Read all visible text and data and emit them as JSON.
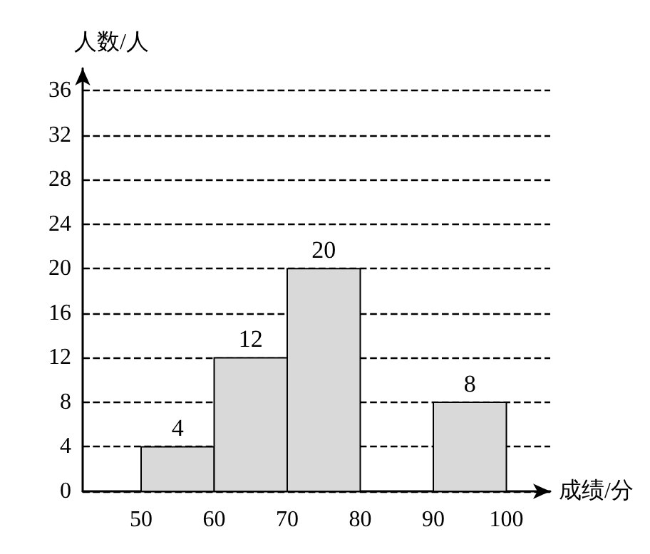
{
  "chart_data": {
    "type": "histogram",
    "xlabel": "成绩/分",
    "ylabel": "人数/人",
    "bins": [
      50,
      60,
      70,
      80,
      90,
      100
    ],
    "values": [
      4,
      12,
      20,
      null,
      8
    ],
    "color": "#d9d9d9",
    "xlim": [
      42,
      106
    ],
    "xticks": [
      50,
      60,
      70,
      80,
      90,
      100
    ],
    "ylim": [
      0,
      38
    ],
    "yticks": [
      0,
      4,
      8,
      12,
      16,
      20,
      24,
      28,
      32,
      36
    ],
    "grid": "y",
    "data_labels": true
  }
}
